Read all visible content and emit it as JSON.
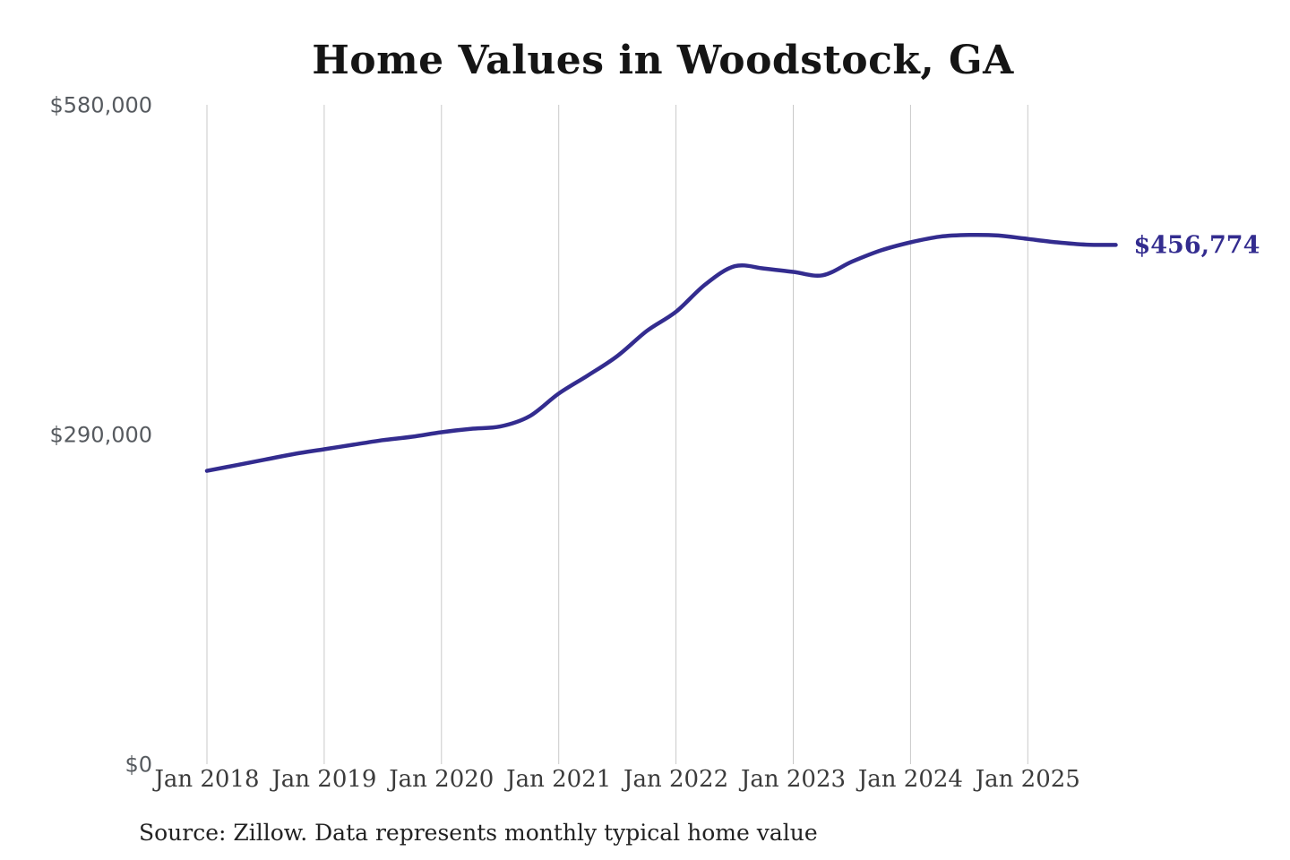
{
  "title": "Home Values in Woodstock, GA",
  "source_note": "Source: Zillow. Data represents monthly typical home value",
  "accent_color": "#332c8f",
  "grid_color": "#c9c9c9",
  "chart_data": {
    "type": "line",
    "title": "Home Values in Woodstock, GA",
    "series_name": "Typical home value",
    "categories": [
      "Jan 2018",
      "Apr 2018",
      "Jul 2018",
      "Oct 2018",
      "Jan 2019",
      "Apr 2019",
      "Jul 2019",
      "Oct 2019",
      "Jan 2020",
      "Apr 2020",
      "Jul 2020",
      "Oct 2020",
      "Jan 2021",
      "Apr 2021",
      "Jul 2021",
      "Oct 2021",
      "Jan 2022",
      "Apr 2022",
      "Jul 2022",
      "Oct 2022",
      "Jan 2023",
      "Apr 2023",
      "Jul 2023",
      "Oct 2023",
      "Jan 2024",
      "Apr 2024",
      "Jul 2024",
      "Oct 2024",
      "Jan 2025",
      "Apr 2025",
      "Jul 2025",
      "Oct 2025"
    ],
    "values": [
      258000,
      263000,
      268000,
      273000,
      277000,
      281000,
      285000,
      288000,
      292000,
      295000,
      297000,
      306000,
      326000,
      342000,
      359000,
      381000,
      398000,
      422000,
      438000,
      436000,
      433000,
      430000,
      442000,
      452000,
      459000,
      464000,
      465500,
      465000,
      462000,
      459000,
      457000,
      456774
    ],
    "x_tick_labels": [
      "Jan 2018",
      "Jan 2019",
      "Jan 2020",
      "Jan 2021",
      "Jan 2022",
      "Jan 2023",
      "Jan 2024",
      "Jan 2025"
    ],
    "y_ticks": [
      {
        "value": 0,
        "label": "$0"
      },
      {
        "value": 290000,
        "label": "$290,000"
      },
      {
        "value": 580000,
        "label": "$580,000"
      }
    ],
    "ylim": [
      0,
      580000
    ],
    "end_label": "$456,774",
    "end_value": 456774,
    "line_color": "#332c8f",
    "grid": "vertical-only",
    "legend": "none",
    "xlabel": "",
    "ylabel": ""
  }
}
